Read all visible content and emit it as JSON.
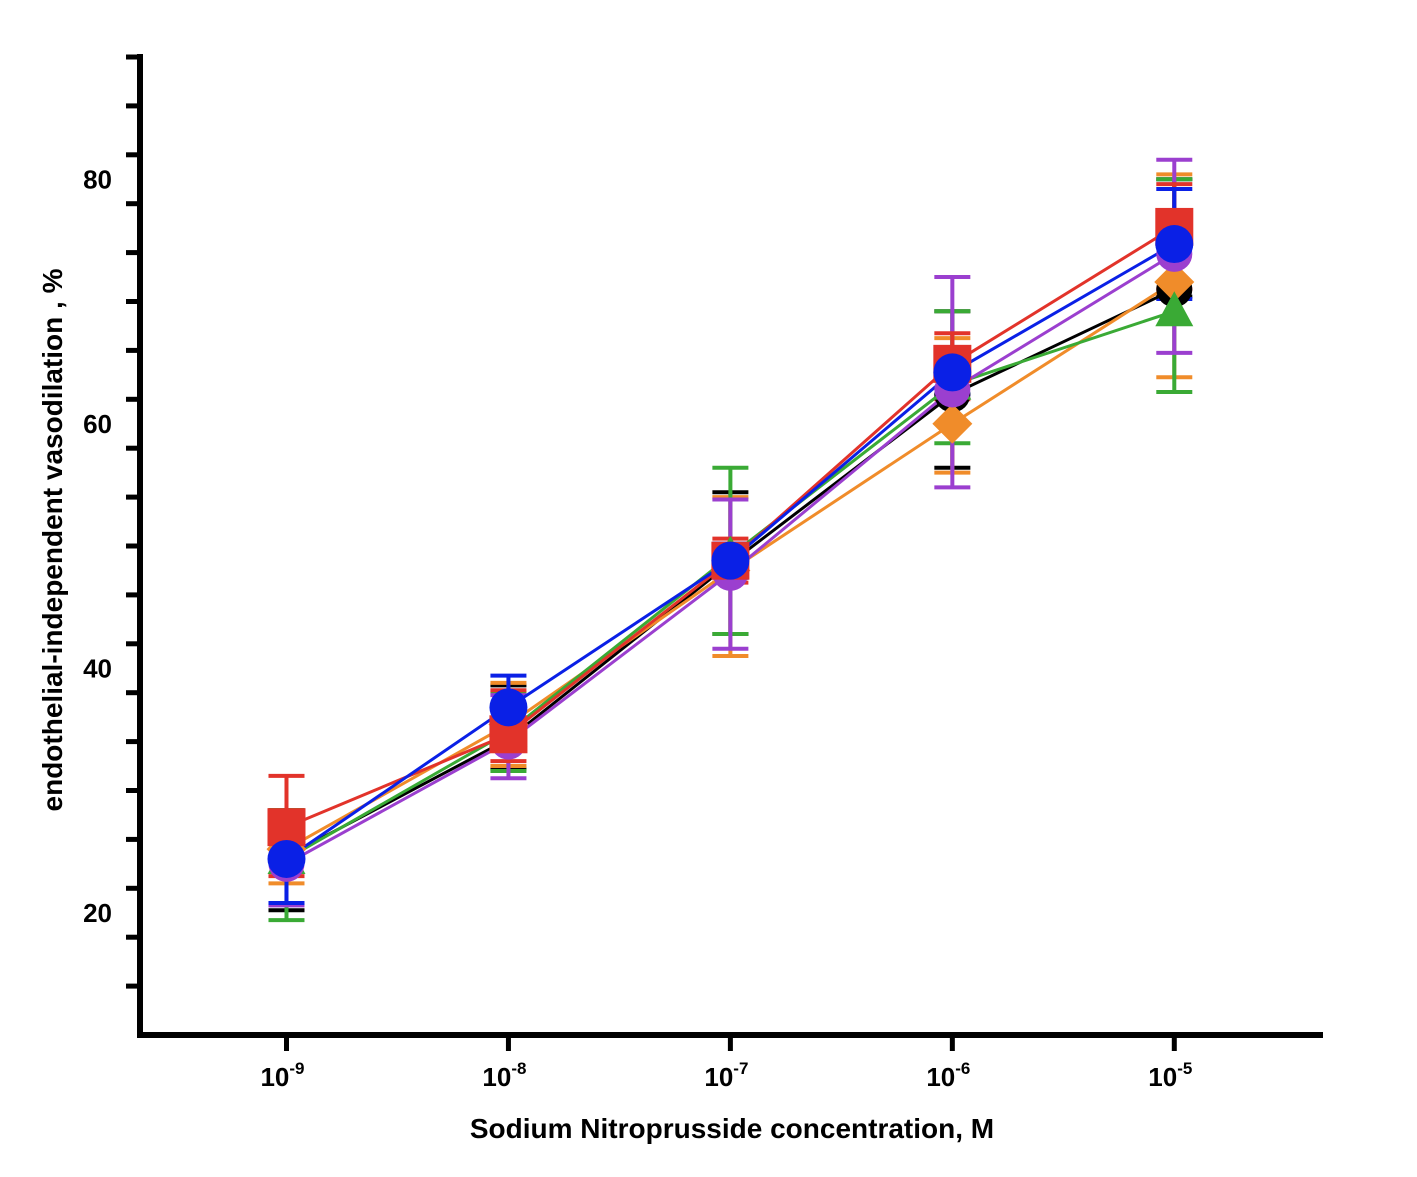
{
  "chart_data": {
    "type": "line",
    "title": "",
    "xlabel": "Sodium Nitroprusside concentration, M",
    "ylabel": "endothelial-independent vasodilation , %",
    "x_scale": "log",
    "x": [
      -9,
      -8,
      -7,
      -6,
      -5
    ],
    "x_tick_labels": [
      {
        "base": "10",
        "exp": "-9"
      },
      {
        "base": "10",
        "exp": "-8"
      },
      {
        "base": "10",
        "exp": "-7"
      },
      {
        "base": "10",
        "exp": "-6"
      },
      {
        "base": "10",
        "exp": "-5"
      }
    ],
    "xlim": [
      -9.66,
      -4.33
    ],
    "ylim": [
      10,
      90
    ],
    "y_major_ticks": [
      20,
      40,
      60,
      80
    ],
    "y_minor_step": 4,
    "grid": false,
    "legend": "none",
    "series": [
      {
        "name": "black",
        "color": "#000000",
        "marker": "circle",
        "values": [
          24.6,
          34.2,
          48.6,
          62.4,
          71.0
        ],
        "err_low": [
          20.2,
          31.8,
          42.8,
          56.4,
          70.4
        ],
        "err_high": [
          28.0,
          38.6,
          54.4,
          69.2,
          80.0
        ]
      },
      {
        "name": "orange",
        "color": "#f08c2a",
        "marker": "diamond",
        "values": [
          25.2,
          35.4,
          48.0,
          60.0,
          71.6
        ],
        "err_low": [
          22.4,
          32.0,
          41.0,
          56.0,
          63.8
        ],
        "err_high": [
          28.2,
          38.8,
          54.0,
          67.0,
          80.4
        ]
      },
      {
        "name": "green",
        "color": "#3aaa35",
        "marker": "triangle",
        "values": [
          24.4,
          34.8,
          49.2,
          63.2,
          69.2
        ],
        "err_low": [
          19.4,
          31.6,
          42.8,
          58.4,
          62.6
        ],
        "err_high": [
          28.4,
          38.0,
          56.4,
          69.2,
          80.0
        ]
      },
      {
        "name": "purple",
        "color": "#9b3fcf",
        "marker": "circle",
        "values": [
          24.0,
          34.0,
          47.8,
          62.8,
          73.9
        ],
        "err_low": [
          20.6,
          31.0,
          41.6,
          54.8,
          65.8
        ],
        "err_high": [
          28.0,
          37.8,
          53.8,
          72.0,
          81.6
        ]
      },
      {
        "name": "red",
        "color": "#e2332a",
        "marker": "square",
        "values": [
          27.0,
          34.6,
          48.8,
          64.9,
          76.1
        ],
        "err_low": [
          23.0,
          32.4,
          47.0,
          62.0,
          71.0
        ],
        "err_high": [
          31.2,
          38.2,
          50.6,
          67.4,
          79.6
        ]
      },
      {
        "name": "blue",
        "color": "#0a20e6",
        "marker": "circle",
        "values": [
          24.4,
          36.8,
          48.8,
          64.2,
          74.7
        ],
        "err_low": [
          20.8,
          34.2,
          47.4,
          62.4,
          70.2
        ],
        "err_high": [
          28.0,
          39.4,
          50.2,
          66.0,
          79.2
        ]
      }
    ]
  }
}
